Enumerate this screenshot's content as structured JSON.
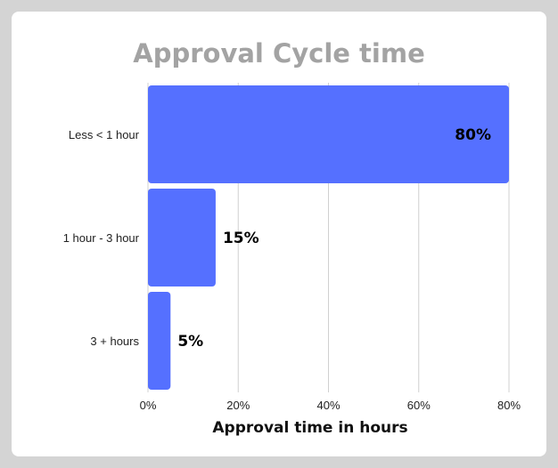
{
  "chart_data": {
    "type": "bar",
    "orientation": "horizontal",
    "title": "Approval Cycle time",
    "xlabel": "Approval time in hours",
    "ylabel": "",
    "categories": [
      "Less < 1 hour",
      "1 hour - 3 hour",
      "3 + hours"
    ],
    "values": [
      80,
      15,
      5
    ],
    "data_labels": [
      "80%",
      "15%",
      "5%"
    ],
    "xlim": [
      0,
      80
    ],
    "x_ticks": [
      0,
      20,
      40,
      60,
      80
    ],
    "x_tick_labels": [
      "0%",
      "20%",
      "40%",
      "60%",
      "80%"
    ],
    "grid": "vertical",
    "legend": "none",
    "colors": {
      "bar": "#5570ff",
      "title": "#a3a3a3",
      "grid": "#d0d0d0",
      "background": "#ffffff",
      "frame": "#d4d4d4"
    }
  }
}
